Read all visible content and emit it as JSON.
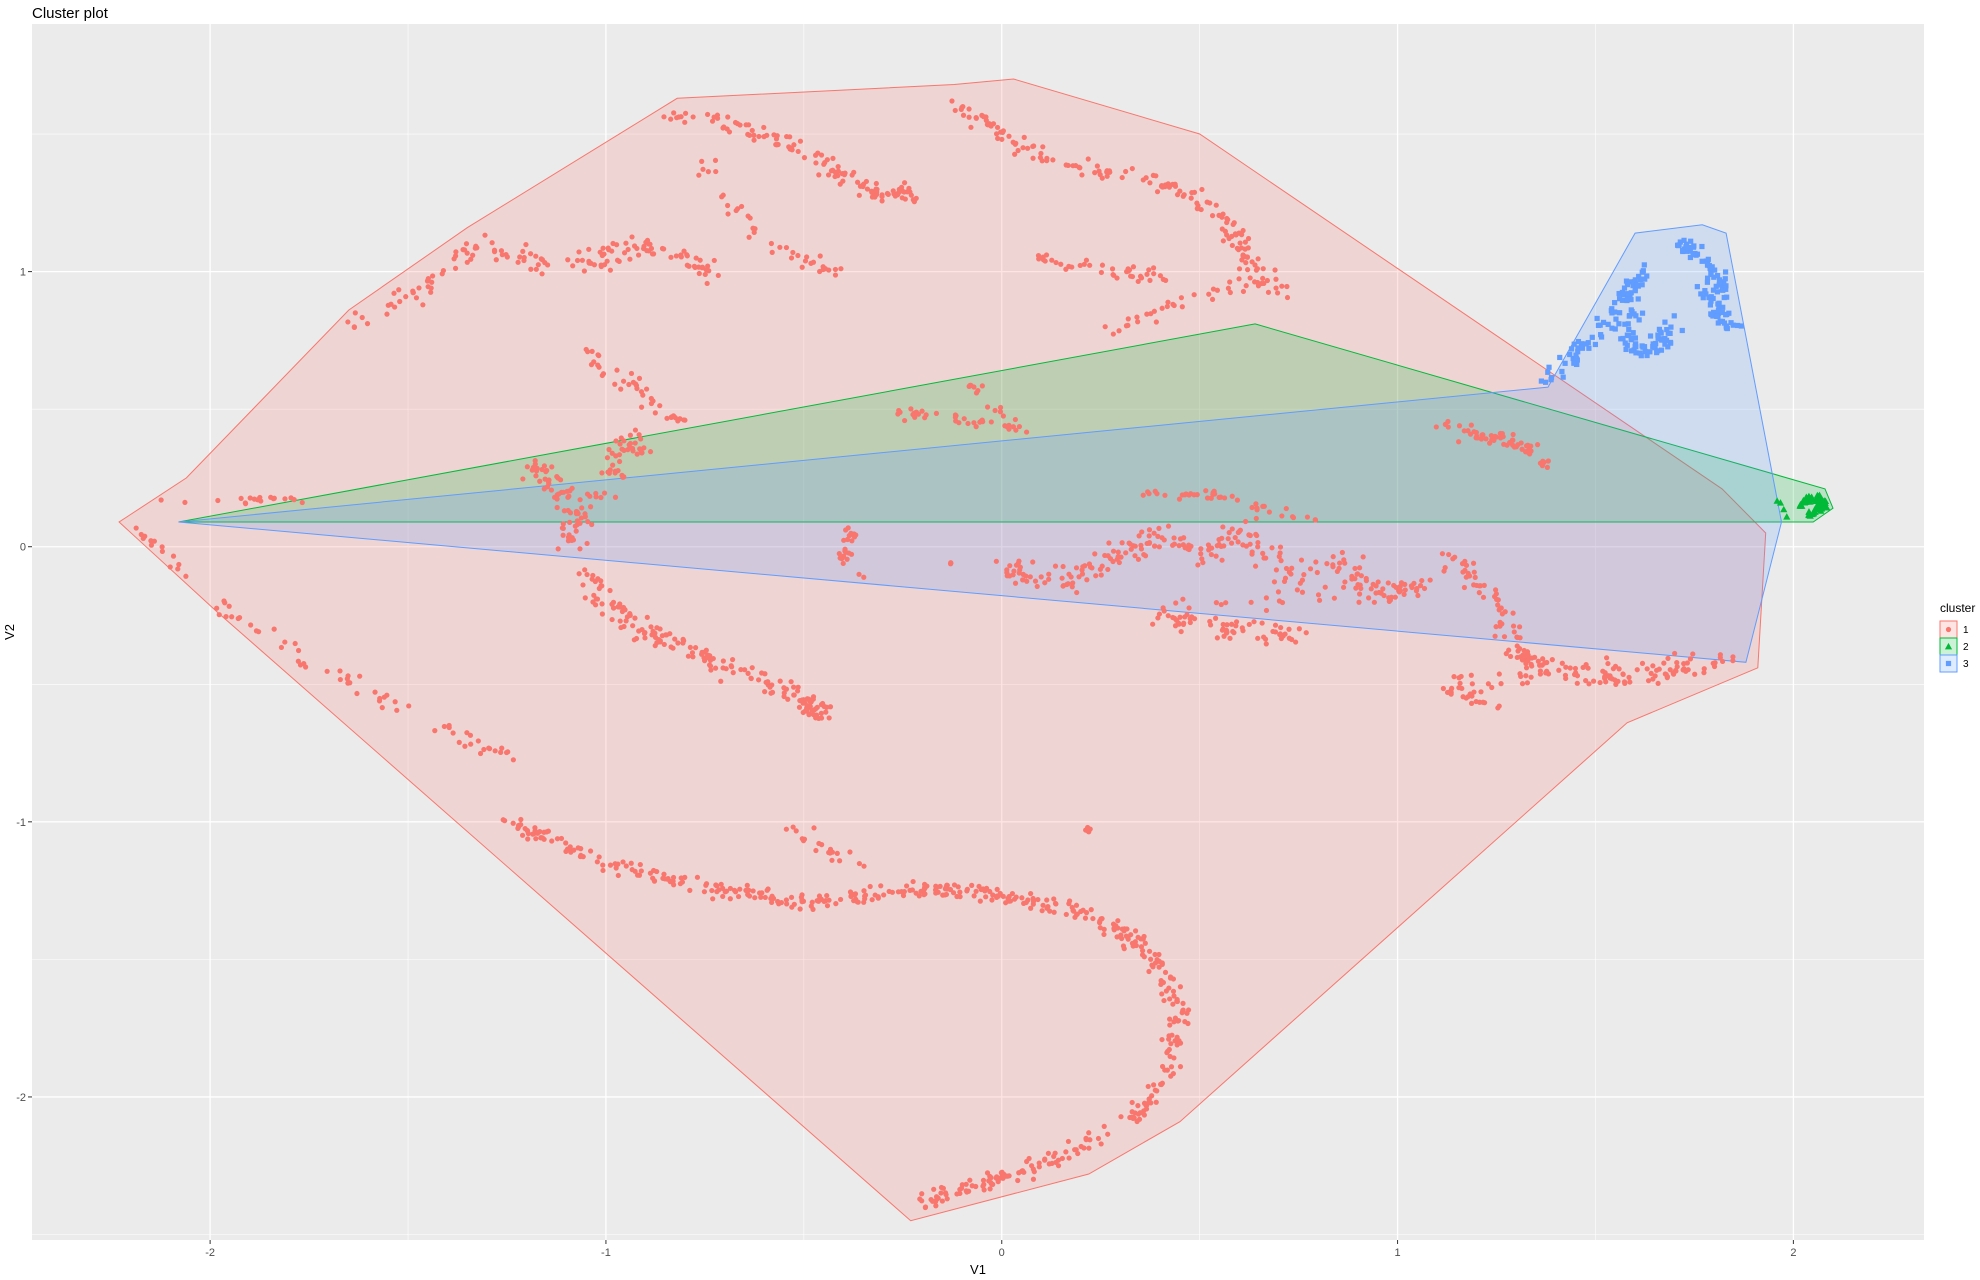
{
  "chart_data": {
    "type": "scatter",
    "title": "Cluster plot",
    "xlabel": "V1",
    "ylabel": "V2",
    "xlim": [
      -2.45,
      2.33
    ],
    "ylim": [
      -2.52,
      1.9
    ],
    "x_ticks": [
      -2,
      -1,
      0,
      1,
      2
    ],
    "y_ticks": [
      -2,
      -1,
      0,
      1
    ],
    "x_tick_labels": [
      "-2",
      "-1",
      "0",
      "1",
      "2"
    ],
    "y_tick_labels": [
      "-2",
      "-1",
      "0",
      "1"
    ],
    "grid": true,
    "legend": {
      "title": "cluster",
      "position": "right",
      "entries": [
        {
          "label": "1",
          "color": "#F8766D",
          "shape": "circle"
        },
        {
          "label": "2",
          "color": "#00BA38",
          "shape": "triangle"
        },
        {
          "label": "3",
          "color": "#619CFF",
          "shape": "square"
        }
      ]
    },
    "series": [
      {
        "name": "1",
        "color": "#F8766D",
        "shape": "circle",
        "hull": [
          [
            -2.23,
            0.09
          ],
          [
            -1.98,
            -0.24
          ],
          [
            -0.23,
            -2.45
          ],
          [
            0.22,
            -2.28
          ],
          [
            0.45,
            -2.09
          ],
          [
            1.58,
            -0.64
          ],
          [
            1.91,
            -0.44
          ],
          [
            1.93,
            0.05
          ],
          [
            1.82,
            0.21
          ],
          [
            0.5,
            1.5
          ],
          [
            0.03,
            1.7
          ],
          [
            -0.12,
            1.68
          ],
          [
            -0.82,
            1.63
          ],
          [
            -1.35,
            1.16
          ],
          [
            -1.65,
            0.86
          ],
          [
            -2.06,
            0.25
          ]
        ],
        "clusters": [
          {
            "points": [
              [
                -2.12,
                0.17
              ],
              [
                -1.93,
                0.16
              ],
              [
                -1.85,
                0.18
              ],
              [
                -1.77,
                0.17
              ]
            ],
            "n": 18,
            "spread": 0.02
          },
          {
            "points": [
              [
                -2.18,
                0.06
              ],
              [
                -2.12,
                -0.02
              ],
              [
                -2.05,
                -0.12
              ]
            ],
            "n": 14,
            "spread": 0.03
          },
          {
            "points": [
              [
                -1.98,
                -0.22
              ],
              [
                -1.82,
                -0.36
              ],
              [
                -1.62,
                -0.52
              ],
              [
                -1.45,
                -0.64
              ],
              [
                -1.32,
                -0.72
              ],
              [
                -1.2,
                -0.78
              ]
            ],
            "n": 60,
            "spread": 0.045
          },
          {
            "points": [
              [
                -1.62,
                0.82
              ],
              [
                -1.48,
                0.92
              ],
              [
                -1.4,
                1.02
              ],
              [
                -1.3,
                1.1
              ],
              [
                -1.2,
                1.05
              ],
              [
                -1.1,
                1.02
              ],
              [
                -1.0,
                1.05
              ],
              [
                -0.9,
                1.1
              ],
              [
                -0.8,
                1.05
              ],
              [
                -0.72,
                0.98
              ]
            ],
            "n": 140,
            "spread": 0.055
          },
          {
            "points": [
              [
                -0.85,
                1.58
              ],
              [
                -0.7,
                1.55
              ],
              [
                -0.55,
                1.48
              ],
              [
                -0.45,
                1.38
              ],
              [
                -0.38,
                1.32
              ],
              [
                -0.3,
                1.28
              ],
              [
                -0.22,
                1.28
              ]
            ],
            "n": 120,
            "spread": 0.05
          },
          {
            "points": [
              [
                -0.78,
                1.45
              ],
              [
                -0.72,
                1.3
              ],
              [
                -0.62,
                1.15
              ],
              [
                -0.55,
                1.05
              ],
              [
                -0.4,
                1.0
              ]
            ],
            "n": 40,
            "spread": 0.05
          },
          {
            "points": [
              [
                -0.15,
                1.62
              ],
              [
                -0.05,
                1.55
              ],
              [
                0.05,
                1.45
              ],
              [
                0.18,
                1.4
              ],
              [
                0.32,
                1.35
              ],
              [
                0.45,
                1.3
              ],
              [
                0.55,
                1.2
              ],
              [
                0.6,
                1.1
              ],
              [
                0.65,
                1.0
              ],
              [
                0.7,
                0.92
              ]
            ],
            "n": 160,
            "spread": 0.05
          },
          {
            "points": [
              [
                0.1,
                1.05
              ],
              [
                0.2,
                1.02
              ],
              [
                0.3,
                1.0
              ],
              [
                0.4,
                0.98
              ]
            ],
            "n": 40,
            "spread": 0.035
          },
          {
            "points": [
              [
                0.28,
                0.78
              ],
              [
                0.38,
                0.85
              ],
              [
                0.5,
                0.92
              ],
              [
                0.62,
                0.95
              ]
            ],
            "n": 30,
            "spread": 0.04
          },
          {
            "points": [
              [
                -1.05,
                0.7
              ],
              [
                -0.95,
                0.6
              ],
              [
                -0.88,
                0.52
              ],
              [
                -0.8,
                0.45
              ]
            ],
            "n": 40,
            "spread": 0.05
          },
          {
            "points": [
              [
                -1.2,
                0.3
              ],
              [
                -1.12,
                0.22
              ],
              [
                -1.08,
                0.1
              ],
              [
                -1.1,
                0.02
              ],
              [
                -1.0,
                0.25
              ],
              [
                -0.95,
                0.4
              ],
              [
                -0.9,
                0.35
              ]
            ],
            "n": 120,
            "spread": 0.06
          },
          {
            "points": [
              [
                -1.05,
                -0.1
              ],
              [
                -0.98,
                -0.22
              ],
              [
                -0.88,
                -0.32
              ],
              [
                -0.75,
                -0.4
              ],
              [
                -0.62,
                -0.48
              ],
              [
                -0.5,
                -0.55
              ],
              [
                -0.45,
                -0.62
              ]
            ],
            "n": 170,
            "spread": 0.055
          },
          {
            "points": [
              [
                -0.4,
                -0.05
              ],
              [
                -0.38,
                0.05
              ],
              [
                -0.36,
                -0.12
              ]
            ],
            "n": 24,
            "spread": 0.03
          },
          {
            "points": [
              [
                -0.28,
                0.5
              ],
              [
                -0.18,
                0.48
              ],
              [
                -0.05,
                0.45
              ],
              [
                0.05,
                0.42
              ],
              [
                -0.08,
                0.6
              ]
            ],
            "n": 50,
            "spread": 0.035
          },
          {
            "points": [
              [
                1.1,
                0.45
              ],
              [
                1.2,
                0.4
              ],
              [
                1.3,
                0.38
              ],
              [
                1.38,
                0.3
              ]
            ],
            "n": 60,
            "spread": 0.04
          },
          {
            "points": [
              [
                0.0,
                -0.08
              ],
              [
                0.15,
                -0.12
              ],
              [
                0.28,
                -0.05
              ],
              [
                0.4,
                0.05
              ],
              [
                0.52,
                -0.05
              ],
              [
                0.62,
                0.08
              ],
              [
                0.72,
                -0.1
              ],
              [
                0.85,
                -0.05
              ],
              [
                0.95,
                -0.18
              ],
              [
                1.05,
                -0.12
              ],
              [
                0.4,
                -0.25
              ],
              [
                0.55,
                -0.3
              ],
              [
                0.75,
                -0.32
              ]
            ],
            "n": 320,
            "spread": 0.07
          },
          {
            "points": [
              [
                0.35,
                0.18
              ],
              [
                0.5,
                0.2
              ],
              [
                0.65,
                0.15
              ],
              [
                0.8,
                0.1
              ]
            ],
            "n": 40,
            "spread": 0.03
          },
          {
            "points": [
              [
                1.15,
                -0.05
              ],
              [
                1.25,
                -0.2
              ],
              [
                1.3,
                -0.4
              ],
              [
                1.4,
                -0.45
              ],
              [
                1.55,
                -0.48
              ],
              [
                1.7,
                -0.45
              ],
              [
                1.85,
                -0.4
              ],
              [
                1.12,
                -0.5
              ],
              [
                1.25,
                -0.58
              ]
            ],
            "n": 210,
            "spread": 0.055
          },
          {
            "points": [
              [
                -1.25,
                -1.0
              ],
              [
                -1.15,
                -1.05
              ],
              [
                -1.0,
                -1.15
              ],
              [
                -0.85,
                -1.2
              ],
              [
                -0.7,
                -1.25
              ],
              [
                -0.55,
                -1.28
              ],
              [
                -0.4,
                -1.28
              ],
              [
                -0.25,
                -1.25
              ],
              [
                -0.1,
                -1.25
              ],
              [
                0.05,
                -1.28
              ],
              [
                0.18,
                -1.32
              ],
              [
                0.3,
                -1.4
              ],
              [
                0.4,
                -1.52
              ],
              [
                0.45,
                -1.7
              ],
              [
                0.42,
                -1.9
              ],
              [
                0.35,
                -2.05
              ],
              [
                0.2,
                -2.18
              ],
              [
                0.05,
                -2.28
              ],
              [
                -0.1,
                -2.33
              ],
              [
                -0.2,
                -2.38
              ]
            ],
            "n": 520,
            "spread": 0.045
          },
          {
            "points": [
              [
                -0.55,
                -1.0
              ],
              [
                -0.45,
                -1.1
              ],
              [
                -0.35,
                -1.15
              ]
            ],
            "n": 20,
            "spread": 0.04
          },
          {
            "points": [
              [
                0.22,
                -1.03
              ]
            ],
            "n": 8,
            "spread": 0.01
          },
          {
            "points": [
              [
                -0.13,
                -0.06
              ]
            ],
            "n": 3,
            "spread": 0.005
          }
        ]
      },
      {
        "name": "2",
        "color": "#00BA38",
        "shape": "triangle",
        "hull": [
          [
            -2.08,
            0.09
          ],
          [
            0.64,
            0.81
          ],
          [
            2.08,
            0.21
          ],
          [
            2.1,
            0.14
          ],
          [
            2.05,
            0.09
          ],
          [
            1.98,
            0.09
          ],
          [
            -2.08,
            0.09
          ]
        ],
        "clusters": [
          {
            "points": [
              [
                2.02,
                0.16
              ],
              [
                2.06,
                0.18
              ],
              [
                2.08,
                0.15
              ],
              [
                2.04,
                0.12
              ]
            ],
            "n": 70,
            "spread": 0.02
          },
          {
            "points": [
              [
                1.96,
                0.17
              ],
              [
                1.99,
                0.1
              ]
            ],
            "n": 4,
            "spread": 0.01
          }
        ]
      },
      {
        "name": "3",
        "color": "#619CFF",
        "shape": "square",
        "hull": [
          [
            -2.08,
            0.09
          ],
          [
            1.88,
            -0.42
          ],
          [
            1.97,
            0.09
          ],
          [
            1.83,
            1.14
          ],
          [
            1.77,
            1.17
          ],
          [
            1.6,
            1.14
          ],
          [
            1.38,
            0.58
          ],
          [
            -2.08,
            0.09
          ]
        ],
        "clusters": [
          {
            "points": [
              [
                1.38,
                0.6
              ],
              [
                1.45,
                0.7
              ],
              [
                1.52,
                0.8
              ],
              [
                1.58,
                0.9
              ],
              [
                1.62,
                1.0
              ],
              [
                1.58,
                0.75
              ],
              [
                1.65,
                0.7
              ],
              [
                1.7,
                0.82
              ]
            ],
            "n": 150,
            "spread": 0.045
          },
          {
            "points": [
              [
                1.72,
                1.1
              ],
              [
                1.78,
                1.05
              ],
              [
                1.82,
                0.95
              ],
              [
                1.8,
                0.85
              ],
              [
                1.85,
                0.8
              ],
              [
                1.75,
                0.95
              ]
            ],
            "n": 100,
            "spread": 0.035
          }
        ]
      }
    ]
  }
}
